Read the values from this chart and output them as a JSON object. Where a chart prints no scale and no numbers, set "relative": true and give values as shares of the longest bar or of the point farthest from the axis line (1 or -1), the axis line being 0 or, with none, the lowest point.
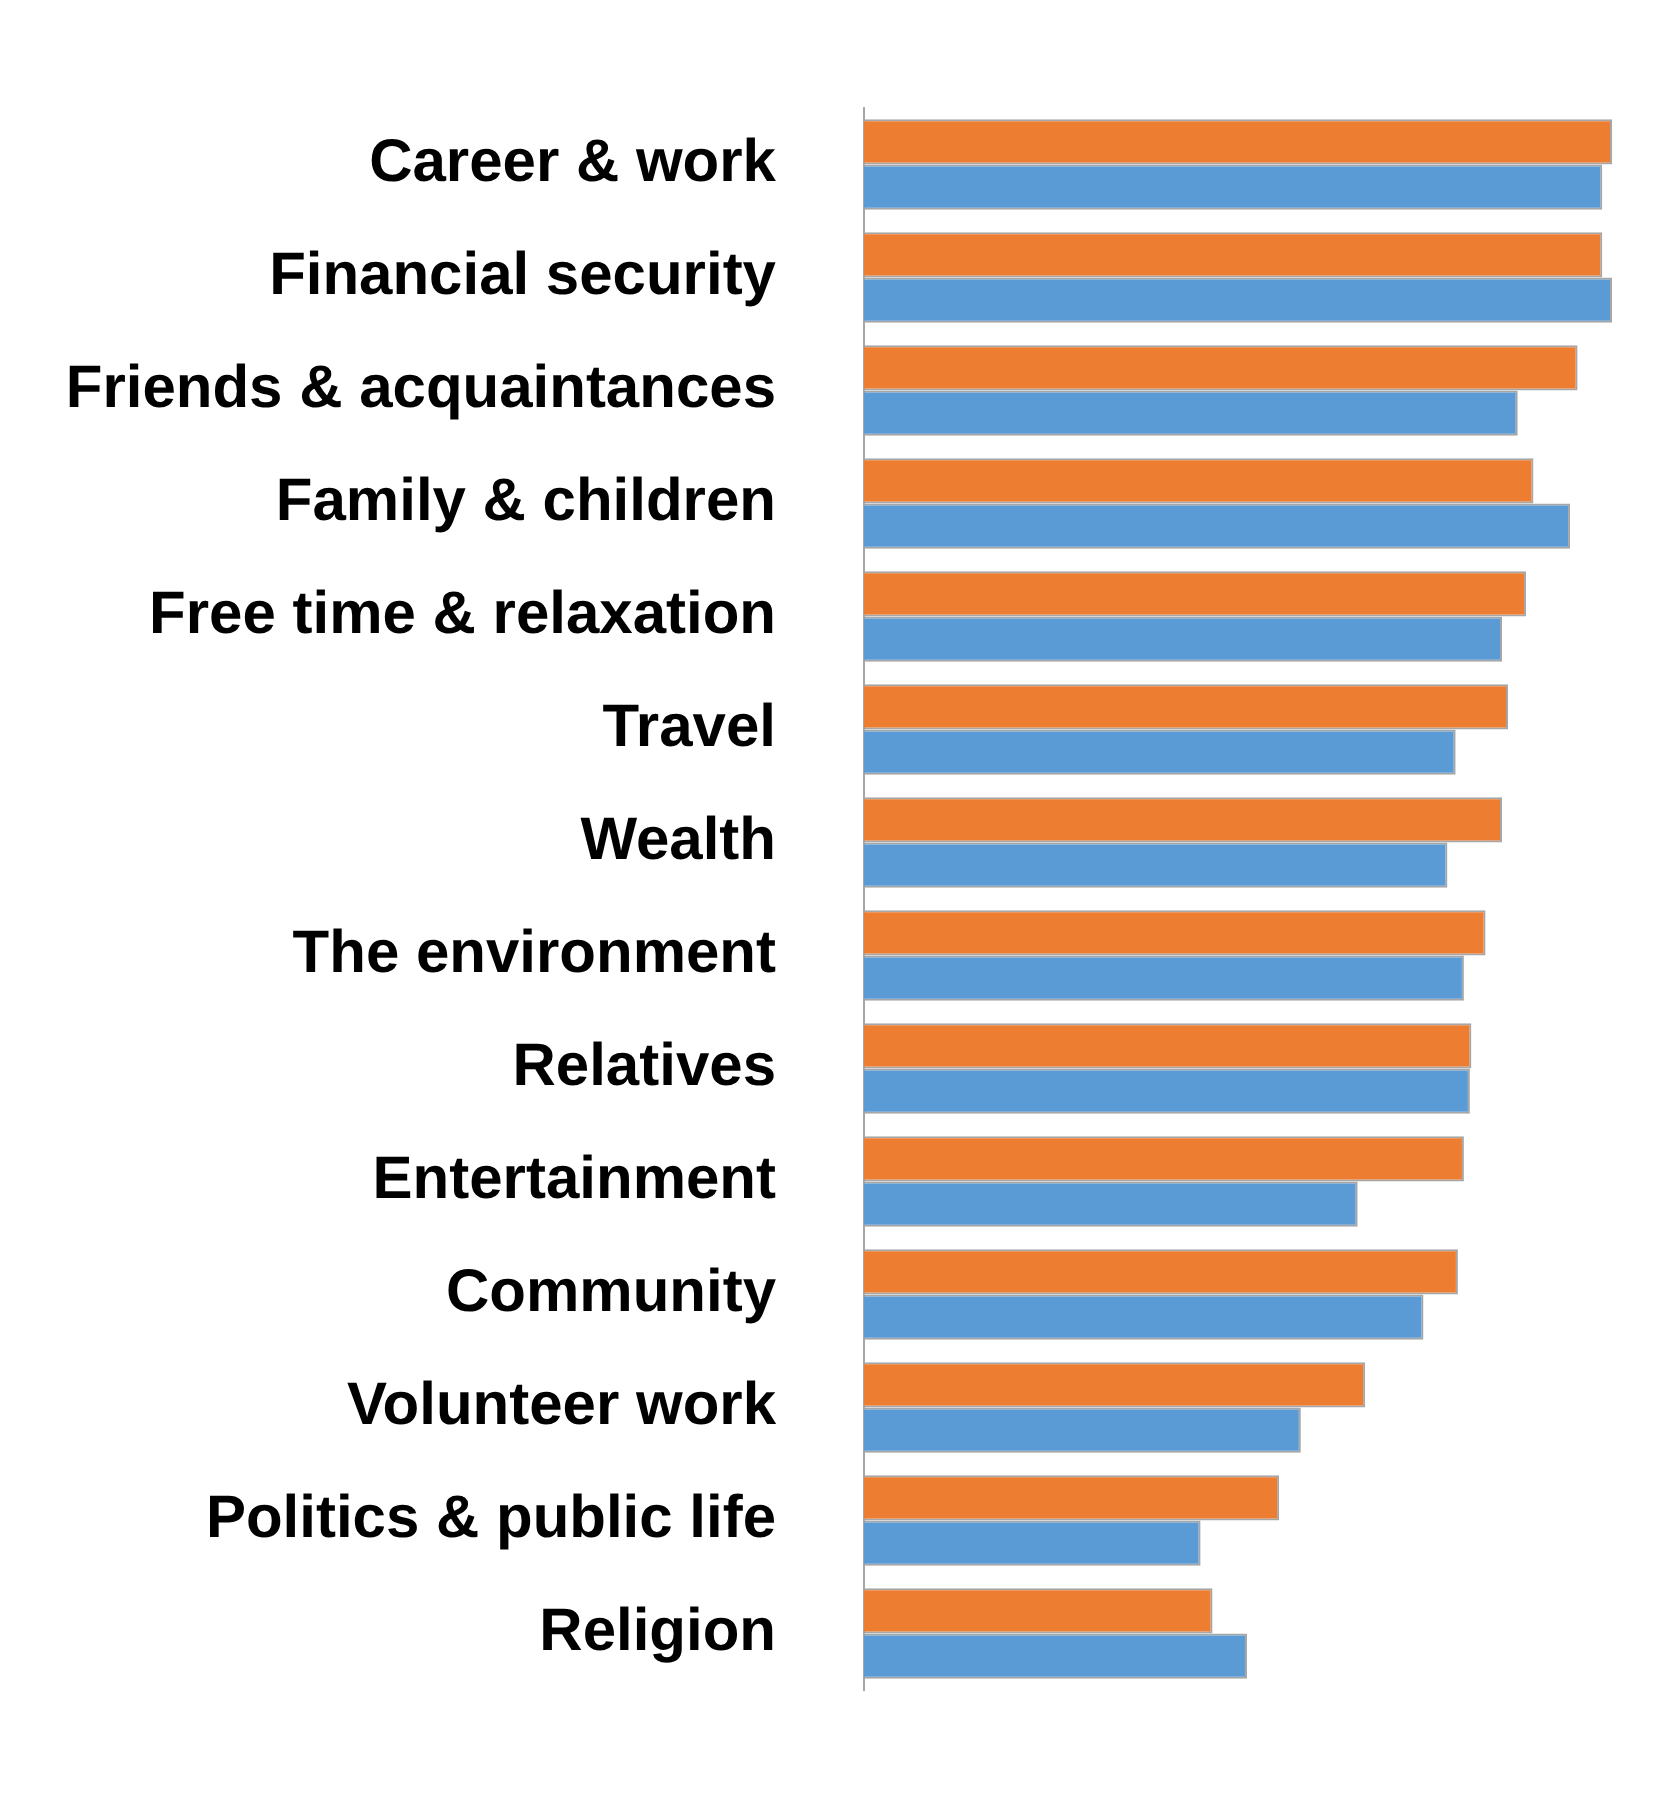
{
  "chart_data": {
    "type": "bar",
    "orientation": "horizontal",
    "relative": true,
    "categories": [
      "Career & work",
      "Financial security",
      "Friends & acquaintances",
      "Family & children",
      "Free time & relaxation",
      "Travel",
      "Wealth",
      "The environment",
      "Relatives",
      "Entertainment",
      "Community",
      "Volunteer work",
      "Politics & public life",
      "Religion"
    ],
    "series": [
      {
        "color": "#ed7d31",
        "values": [
          1.0,
          0.987,
          0.954,
          0.895,
          0.885,
          0.861,
          0.853,
          0.831,
          0.812,
          0.802,
          0.794,
          0.67,
          0.555,
          0.466
        ]
      },
      {
        "color": "#5b9bd5",
        "values": [
          0.987,
          1.0,
          0.874,
          0.944,
          0.853,
          0.791,
          0.78,
          0.802,
          0.81,
          0.66,
          0.748,
          0.584,
          0.45,
          0.512
        ]
      }
    ]
  }
}
